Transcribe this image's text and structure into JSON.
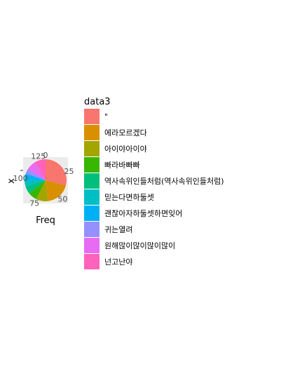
{
  "chart_data": {
    "type": "pie",
    "xlabel": "Freq",
    "ylabel": "x",
    "x_ticks": [
      "0",
      "25",
      "50",
      "75",
      "100",
      "125"
    ],
    "legend": {
      "title": "data3",
      "placement": "right"
    },
    "categories": [
      "\"",
      "에라모르겠다",
      "아이야아이야",
      "빠라바빠빠",
      "역사속위인들처럼(역사속위인들처럼)",
      "믿는다면하둘셋",
      "괜찮아자하둘셋하면잊어",
      "귀는열려",
      "원해많이많이많이많이",
      "넌고난야"
    ],
    "values": [
      38,
      25,
      12,
      9,
      8,
      7,
      6,
      5,
      10,
      11
    ],
    "colors": [
      "#F8766D",
      "#D89000",
      "#A3A500",
      "#39B600",
      "#00BF7D",
      "#00BFC4",
      "#00B0F6",
      "#9590FF",
      "#E76BF3",
      "#FF62BC"
    ],
    "panel_background": "#EBEBEB",
    "grid": true
  }
}
